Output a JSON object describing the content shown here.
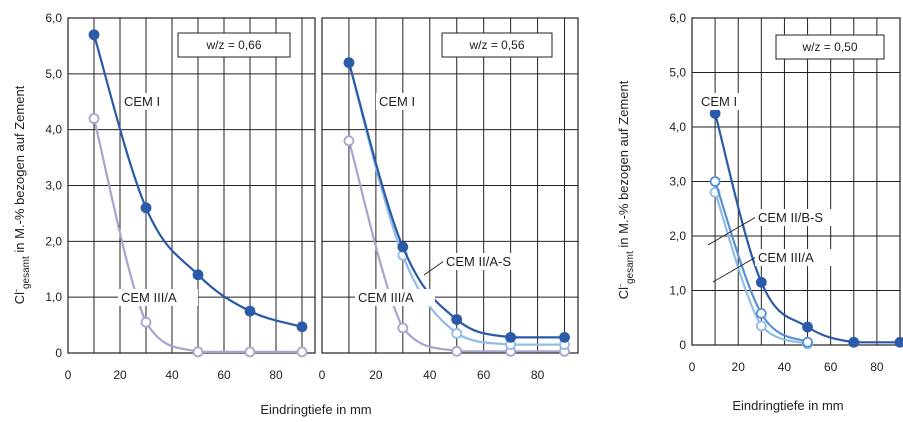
{
  "figure": {
    "xlabel": "Eindringtiefe in mm",
    "ylabel_main": "Cl",
    "ylabel_sup": "-",
    "ylabel_sub": "gesamt",
    "ylabel_rest": " in M.-% bezogen auf Zement"
  },
  "chart_data": [
    {
      "type": "line",
      "annotation": "w/z = 0,66",
      "xlim": [
        0,
        95
      ],
      "ylim": [
        0,
        6
      ],
      "xticks": [
        "0",
        "20",
        "40",
        "60",
        "80"
      ],
      "yticks": [
        "0",
        "1,0",
        "2,0",
        "3,0",
        "4,0",
        "5,0",
        "6,0"
      ],
      "grid": true,
      "series": [
        {
          "name": "CEM I",
          "color": "#2a5aa8",
          "x": [
            10,
            30,
            50,
            70,
            90
          ],
          "y": [
            5.7,
            2.6,
            1.4,
            0.75,
            0.47
          ]
        },
        {
          "name": "CEM III/A",
          "color": "#a9a3cf",
          "x": [
            10,
            30,
            50,
            70,
            90
          ],
          "y": [
            4.2,
            0.55,
            0.02,
            0.02,
            0.02
          ]
        }
      ]
    },
    {
      "type": "line",
      "annotation": "w/z = 0,56",
      "xlim": [
        0,
        95
      ],
      "ylim": [
        0,
        6
      ],
      "xticks": [
        "0",
        "20",
        "40",
        "60",
        "80"
      ],
      "yticks": [],
      "grid": true,
      "series": [
        {
          "name": "CEM I",
          "color": "#2a5aa8",
          "x": [
            10,
            30,
            50,
            70,
            90
          ],
          "y": [
            5.2,
            1.9,
            0.6,
            0.28,
            0.28
          ]
        },
        {
          "name": "CEM II/A-S",
          "color": "#8fbde8",
          "x": [
            10,
            30,
            50,
            70,
            90
          ],
          "y": [
            5.2,
            1.75,
            0.35,
            0.15,
            0.15
          ]
        },
        {
          "name": "CEM III/A",
          "color": "#a9a3cf",
          "x": [
            10,
            30,
            50,
            70,
            90
          ],
          "y": [
            3.8,
            0.45,
            0.03,
            0.03,
            0.03
          ]
        }
      ]
    },
    {
      "type": "line",
      "annotation": "w/z = 0,50",
      "xlim": [
        0,
        90
      ],
      "ylim": [
        0,
        6
      ],
      "xticks": [
        "0",
        "20",
        "40",
        "60",
        "80"
      ],
      "yticks": [
        "0",
        "1,0",
        "2,0",
        "3,0",
        "4,0",
        "5,0",
        "6,0"
      ],
      "grid": true,
      "series": [
        {
          "name": "CEM I",
          "color": "#2a5aa8",
          "x": [
            10,
            30,
            50,
            70,
            90
          ],
          "y": [
            4.25,
            1.15,
            0.33,
            0.05,
            0.05
          ]
        },
        {
          "name": "CEM II/B-S",
          "color": "#5a8fd0",
          "x": [
            10,
            30,
            50
          ],
          "y": [
            3.0,
            0.58,
            0.05
          ]
        },
        {
          "name": "CEM III/A",
          "color": "#8fbde8",
          "x": [
            10,
            30,
            50
          ],
          "y": [
            2.8,
            0.35,
            0.02
          ]
        }
      ]
    }
  ]
}
